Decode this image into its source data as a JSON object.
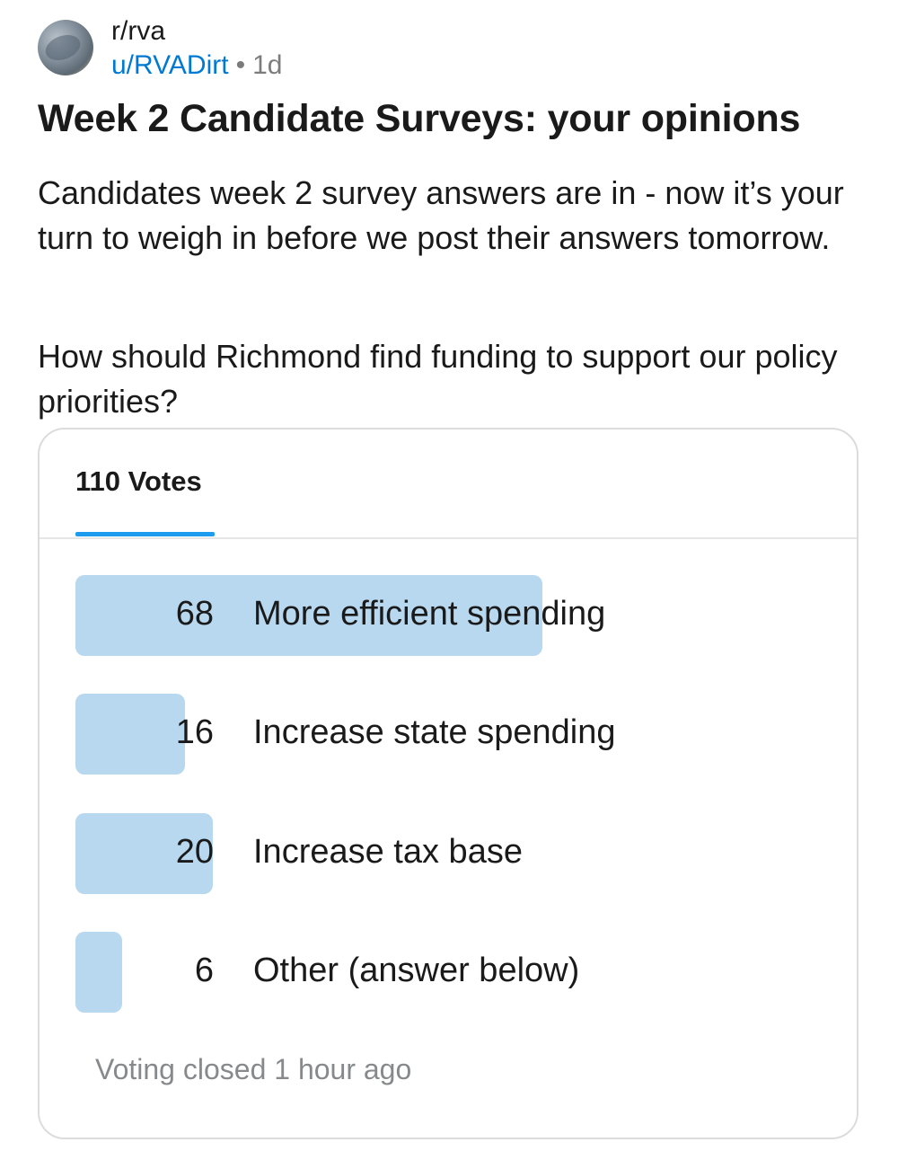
{
  "post": {
    "subreddit": "r/rva",
    "username": "u/RVADirt",
    "separator": "•",
    "age": "1d",
    "title": "Week 2 Candidate Surveys: your opinions",
    "paragraphs": [
      "Candidates week 2 survey answers are in - now it’s your turn to weigh in before we post their answers tomorrow.",
      "How should Richmond find funding to support our policy priorities?"
    ]
  },
  "poll": {
    "total_label": "110 Votes",
    "total_votes": 110,
    "max_votes": 68,
    "options": [
      {
        "count": "68",
        "votes": 68,
        "label": "More efficient spending"
      },
      {
        "count": "16",
        "votes": 16,
        "label": "Increase state spending"
      },
      {
        "count": "20",
        "votes": 20,
        "label": "Increase tax base"
      },
      {
        "count": "6",
        "votes": 6,
        "label": "Other (answer below)"
      }
    ],
    "status": "Voting closed 1 hour ago",
    "colors": {
      "bar": "#b7d8ef",
      "tab_indicator": "#1c9bef",
      "username": "#0079d3"
    }
  }
}
